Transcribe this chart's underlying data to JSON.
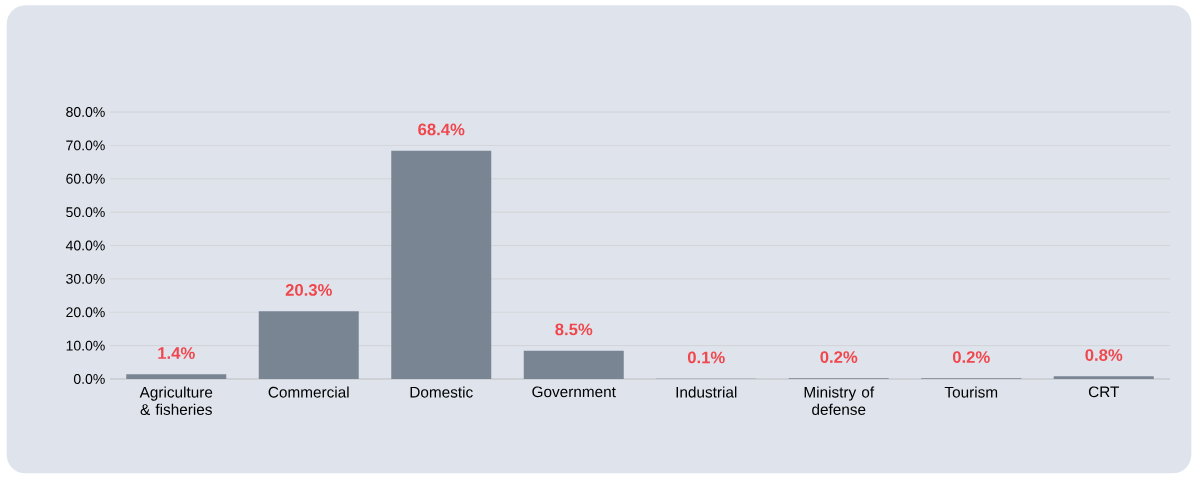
{
  "chart_data": {
    "type": "bar",
    "categories": [
      "Agriculture & fisheries",
      "Commercial",
      "Domestic",
      "Government",
      "Industrial",
      "Ministry of defense",
      "Tourism",
      "CRT"
    ],
    "values": [
      1.4,
      20.3,
      68.4,
      8.5,
      0.1,
      0.2,
      0.2,
      0.8
    ],
    "value_labels": [
      "1.4%",
      "20.3%",
      "68.4%",
      "8.5%",
      "0.1%",
      "0.2%",
      "0.2%",
      "0.8%"
    ],
    "color": "#7a8594",
    "ylim": [
      0,
      80
    ],
    "yticks": [
      {
        "value": 0,
        "label": "0.0%"
      },
      {
        "value": 10,
        "label": "10.0%"
      },
      {
        "value": 20,
        "label": "20.0%"
      },
      {
        "value": 30,
        "label": "30.0%"
      },
      {
        "value": 40,
        "label": "40.0%"
      },
      {
        "value": 50,
        "label": "50.0%"
      },
      {
        "value": 60,
        "label": "60.0%"
      },
      {
        "value": 70,
        "label": "70.0%"
      },
      {
        "value": 80,
        "label": "80.0%"
      }
    ],
    "grid": "y"
  }
}
